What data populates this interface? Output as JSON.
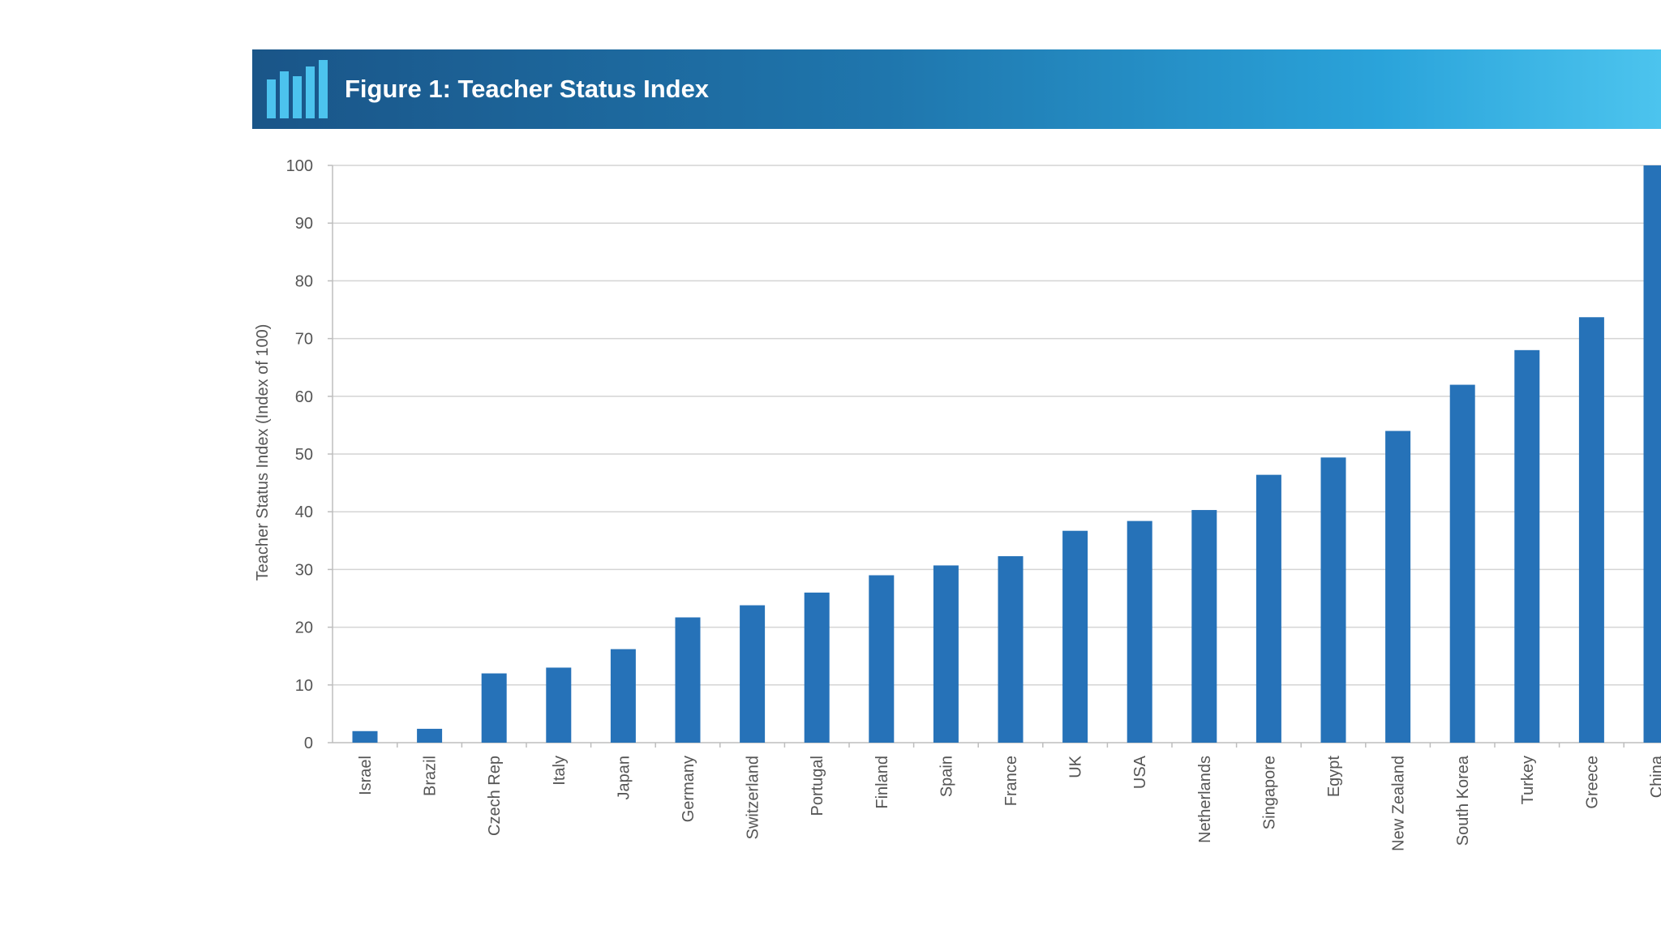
{
  "banner": {
    "title": "Figure 1: Teacher Status Index",
    "icon": "bar-chart-icon"
  },
  "chart_data": {
    "type": "bar",
    "title": "Figure 1: Teacher Status Index",
    "ylabel": "Teacher Status Index (Index of 100)",
    "xlabel": "",
    "ylim": [
      0,
      100
    ],
    "yticks": [
      0,
      10,
      20,
      30,
      40,
      50,
      60,
      70,
      80,
      90,
      100
    ],
    "grid": true,
    "categories": [
      "Israel",
      "Brazil",
      "Czech Rep",
      "Italy",
      "Japan",
      "Germany",
      "Switzerland",
      "Portugal",
      "Finland",
      "Spain",
      "France",
      "UK",
      "USA",
      "Netherlands",
      "Singapore",
      "Egypt",
      "New Zealand",
      "South Korea",
      "Turkey",
      "Greece",
      "China"
    ],
    "values": [
      2,
      2.4,
      12,
      13,
      16.2,
      21.7,
      23.8,
      26,
      29,
      30.7,
      32.3,
      36.7,
      38.4,
      40.3,
      46.4,
      49.4,
      54,
      62,
      68,
      73.7,
      100
    ],
    "bar_color": "#2672b8"
  }
}
